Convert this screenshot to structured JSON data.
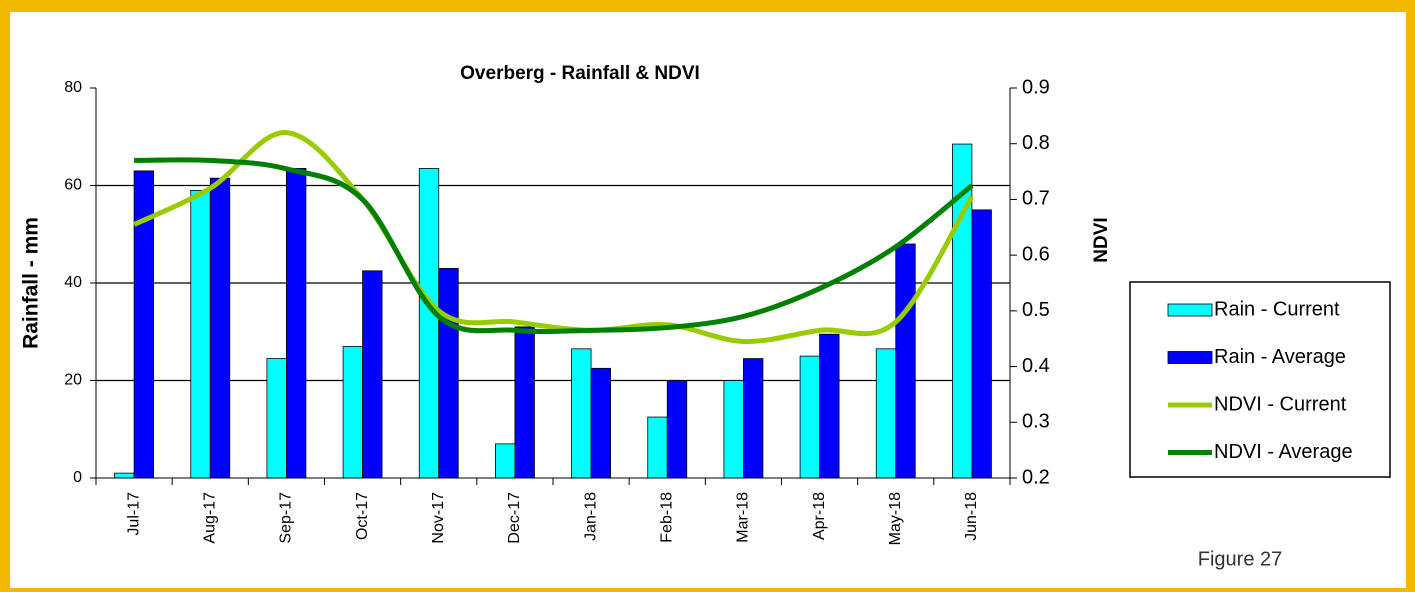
{
  "chart_data": {
    "type": "bar",
    "title": "Overberg - Rainfall  & NDVI",
    "ylabel": "Rainfall - mm",
    "y2label": "NDVI",
    "annotation": "Figure 27",
    "categories": [
      "Jul-17",
      "Aug-17",
      "Sep-17",
      "Oct-17",
      "Nov-17",
      "Dec-17",
      "Jan-18",
      "Feb-18",
      "Mar-18",
      "Apr-18",
      "May-18",
      "Jun-18"
    ],
    "series": [
      {
        "name": "Rain - Current",
        "type": "bar",
        "color": "#00ffff",
        "values": [
          1,
          59,
          24.5,
          27,
          63.5,
          7,
          26.5,
          12.5,
          20,
          25,
          26.5,
          68.5
        ]
      },
      {
        "name": "Rain - Average",
        "type": "bar",
        "color": "#0000ff",
        "values": [
          63,
          61.5,
          63.5,
          42.5,
          43,
          31,
          22.5,
          20,
          24.5,
          29.5,
          48,
          55
        ]
      },
      {
        "name": "NDVI - Current",
        "type": "line",
        "axis": "y2",
        "color": "#99cc00",
        "values": [
          0.655,
          0.72,
          0.82,
          0.7,
          0.5,
          0.48,
          0.465,
          0.475,
          0.445,
          0.465,
          0.48,
          0.705
        ]
      },
      {
        "name": "NDVI - Average",
        "type": "line",
        "axis": "y2",
        "color": "#008000",
        "values": [
          0.77,
          0.77,
          0.755,
          0.7,
          0.49,
          0.465,
          0.465,
          0.47,
          0.49,
          0.54,
          0.615,
          0.725
        ]
      }
    ],
    "ylim": [
      0,
      80
    ],
    "yticks": [
      0,
      20,
      40,
      60,
      80
    ],
    "y2lim": [
      0.2,
      0.9
    ],
    "y2ticks": [
      0.2,
      0.3,
      0.4,
      0.5,
      0.6,
      0.7,
      0.8,
      0.9
    ],
    "grid": true,
    "legend": "right"
  }
}
